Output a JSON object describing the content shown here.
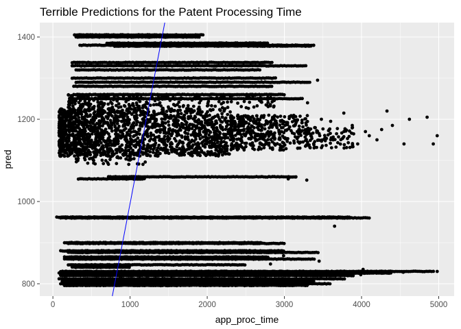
{
  "chart_data": {
    "type": "scatter",
    "title": "Terrible Predictions for the Patent Processing Time",
    "xlabel": "app_proc_time",
    "ylabel": "pred",
    "xlim": [
      -170,
      5200
    ],
    "ylim": [
      770,
      1435
    ],
    "x_ticks": [
      0,
      1000,
      2000,
      3000,
      4000,
      5000
    ],
    "y_ticks": [
      800,
      1000,
      1200,
      1400
    ],
    "x_tick_labels": [
      "0",
      "1000",
      "2000",
      "3000",
      "4000",
      "5000"
    ],
    "y_tick_labels": [
      "800",
      "1000",
      "1200",
      "1400"
    ],
    "grid": true,
    "legend": "none",
    "colors": {
      "panel_background": "#ebebeb",
      "grid": "#ffffff",
      "points": "#000000",
      "reference_line": "#0000ff"
    },
    "reference_line": {
      "x": [
        770,
        1450
      ],
      "y": [
        770,
        1435
      ]
    },
    "bands": [
      {
        "y": 1405,
        "x_min": 280,
        "x_max": 1950
      },
      {
        "y": 1400,
        "x_min": 300,
        "x_max": 1900
      },
      {
        "y": 1385,
        "x_min": 700,
        "x_max": 2800
      },
      {
        "y": 1380,
        "x_min": 350,
        "x_max": 3400
      },
      {
        "y": 1378,
        "x_min": 800,
        "x_max": 3350
      },
      {
        "y": 1338,
        "x_min": 250,
        "x_max": 2850
      },
      {
        "y": 1330,
        "x_min": 250,
        "x_max": 3300
      },
      {
        "y": 1320,
        "x_min": 300,
        "x_max": 2700
      },
      {
        "y": 1300,
        "x_min": 250,
        "x_max": 2900
      },
      {
        "y": 1290,
        "x_min": 300,
        "x_max": 3330
      },
      {
        "y": 1280,
        "x_min": 270,
        "x_max": 2850
      },
      {
        "y": 1260,
        "x_min": 270,
        "x_max": 3000
      },
      {
        "y": 1250,
        "x_min": 250,
        "x_max": 3250
      },
      {
        "y": 1060,
        "x_min": 720,
        "x_max": 3160
      },
      {
        "y": 1055,
        "x_min": 330,
        "x_max": 1200
      },
      {
        "y": 962,
        "x_min": 50,
        "x_max": 3850
      },
      {
        "y": 960,
        "x_min": 100,
        "x_max": 4100
      },
      {
        "y": 900,
        "x_min": 150,
        "x_max": 2700
      },
      {
        "y": 898,
        "x_min": 200,
        "x_max": 3000
      },
      {
        "y": 880,
        "x_min": 100,
        "x_max": 3000
      },
      {
        "y": 876,
        "x_min": 200,
        "x_max": 3450
      },
      {
        "y": 865,
        "x_min": 150,
        "x_max": 2800
      },
      {
        "y": 860,
        "x_min": 150,
        "x_max": 3400
      },
      {
        "y": 846,
        "x_min": 200,
        "x_max": 2500
      },
      {
        "y": 840,
        "x_min": 250,
        "x_max": 1000
      },
      {
        "y": 830,
        "x_min": 100,
        "x_max": 4950
      },
      {
        "y": 826,
        "x_min": 80,
        "x_max": 4400
      },
      {
        "y": 820,
        "x_min": 100,
        "x_max": 3900
      },
      {
        "y": 812,
        "x_min": 80,
        "x_max": 3800
      },
      {
        "y": 806,
        "x_min": 120,
        "x_max": 3400
      },
      {
        "y": 800,
        "x_min": 100,
        "x_max": 3600
      },
      {
        "y": 796,
        "x_min": 150,
        "x_max": 3300
      }
    ],
    "clusters": [
      {
        "x_min": 80,
        "x_max": 2300,
        "y_min": 1110,
        "y_max": 1225,
        "count": 1700
      },
      {
        "x_min": 2300,
        "x_max": 3300,
        "y_min": 1125,
        "y_max": 1210,
        "count": 420
      },
      {
        "x_min": 3300,
        "x_max": 3900,
        "y_min": 1130,
        "y_max": 1180,
        "count": 90
      },
      {
        "x_min": 200,
        "x_max": 2900,
        "y_min": 1225,
        "y_max": 1260,
        "count": 260
      },
      {
        "x_min": 300,
        "x_max": 1200,
        "y_min": 1090,
        "y_max": 1110,
        "count": 40
      }
    ],
    "outliers": [
      {
        "x": 4850,
        "y": 1205
      },
      {
        "x": 4980,
        "y": 1160
      },
      {
        "x": 4930,
        "y": 1140
      },
      {
        "x": 4620,
        "y": 1200
      },
      {
        "x": 4550,
        "y": 1140
      },
      {
        "x": 4330,
        "y": 1220
      },
      {
        "x": 4400,
        "y": 1185
      },
      {
        "x": 4260,
        "y": 1175
      },
      {
        "x": 4100,
        "y": 1160
      },
      {
        "x": 4050,
        "y": 1170
      },
      {
        "x": 4200,
        "y": 1150
      },
      {
        "x": 3950,
        "y": 1140
      },
      {
        "x": 3880,
        "y": 1185
      },
      {
        "x": 3770,
        "y": 1215
      },
      {
        "x": 3600,
        "y": 1195
      },
      {
        "x": 3480,
        "y": 1200
      },
      {
        "x": 3300,
        "y": 1240
      },
      {
        "x": 3430,
        "y": 1295
      },
      {
        "x": 3380,
        "y": 1380
      },
      {
        "x": 4360,
        "y": 828
      },
      {
        "x": 4980,
        "y": 830
      },
      {
        "x": 4540,
        "y": 828
      },
      {
        "x": 4300,
        "y": 828
      },
      {
        "x": 3650,
        "y": 940
      },
      {
        "x": 3850,
        "y": 960
      },
      {
        "x": 3400,
        "y": 960
      },
      {
        "x": 2990,
        "y": 868
      },
      {
        "x": 3450,
        "y": 855
      },
      {
        "x": 2820,
        "y": 848
      },
      {
        "x": 3750,
        "y": 822
      },
      {
        "x": 3880,
        "y": 820
      },
      {
        "x": 3990,
        "y": 822
      },
      {
        "x": 4150,
        "y": 826
      },
      {
        "x": 4020,
        "y": 835
      },
      {
        "x": 3290,
        "y": 1052
      },
      {
        "x": 3150,
        "y": 1060
      },
      {
        "x": 3050,
        "y": 1055
      }
    ]
  }
}
